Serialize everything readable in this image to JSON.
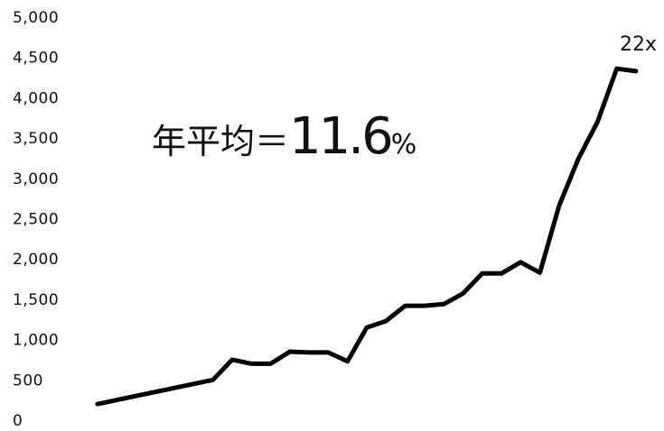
{
  "chart_data": {
    "type": "line",
    "title": "",
    "xlabel": "",
    "ylabel": "",
    "ylim": [
      0,
      5000
    ],
    "y_ticks": [
      0,
      500,
      1000,
      1500,
      2000,
      2500,
      3000,
      3500,
      4000,
      4500,
      5000
    ],
    "y_tick_labels": [
      "0",
      "500",
      "1,000",
      "1,500",
      "2,000",
      "2,500",
      "3,000",
      "3,500",
      "4,000",
      "4,500",
      "5,000"
    ],
    "grid": false,
    "series": [
      {
        "color": "#000000",
        "values": [
          200,
          500,
          750,
          700,
          700,
          850,
          840,
          840,
          730,
          1150,
          1230,
          1420,
          1420,
          1440,
          1570,
          1820,
          1820,
          1960,
          1830,
          2660,
          3240,
          3700,
          4360,
          4330
        ],
        "x_positions": [
          0,
          6,
          7,
          8,
          9,
          10,
          11,
          12,
          13,
          14,
          15,
          16,
          17,
          18,
          19,
          20,
          21,
          22,
          23,
          24,
          25,
          26,
          27,
          28
        ]
      }
    ],
    "end_label": "22x",
    "annotation": {
      "prefix": "年平均＝",
      "number": "11.6",
      "suffix": "%"
    }
  }
}
